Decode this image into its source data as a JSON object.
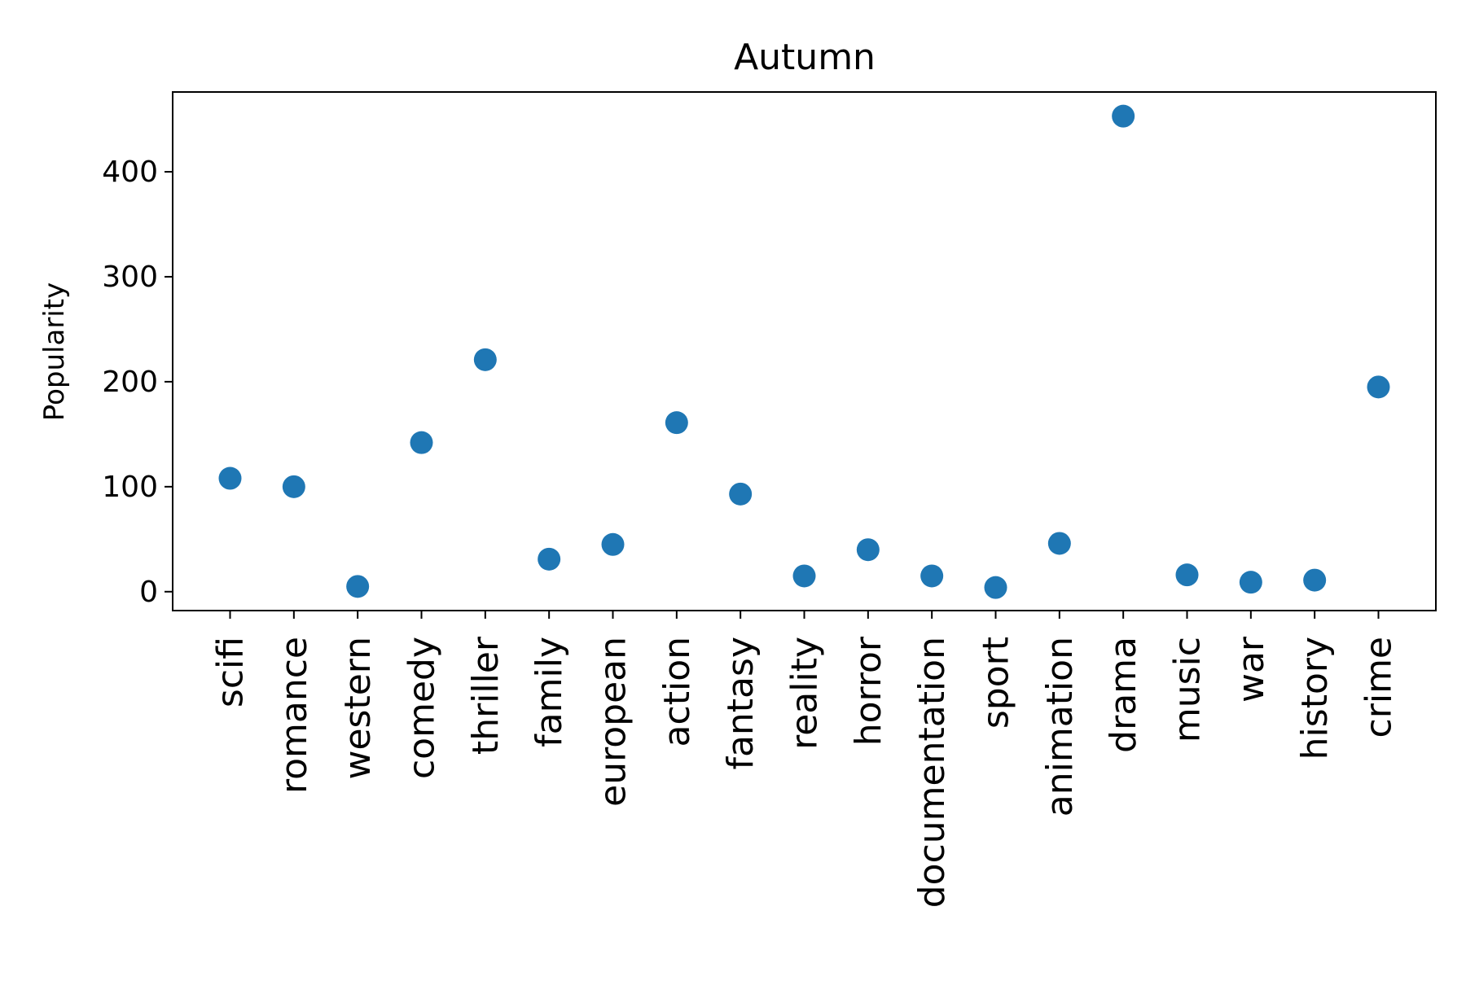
{
  "chart_data": {
    "type": "scatter",
    "title": "Autumn",
    "xlabel": "",
    "ylabel": "Popularity",
    "categories": [
      "scifi",
      "romance",
      "western",
      "comedy",
      "thriller",
      "family",
      "european",
      "action",
      "fantasy",
      "reality",
      "horror",
      "documentation",
      "sport",
      "animation",
      "drama",
      "music",
      "war",
      "history",
      "crime"
    ],
    "values": [
      108,
      100,
      5,
      142,
      221,
      31,
      45,
      161,
      93,
      15,
      40,
      15,
      4,
      46,
      453,
      16,
      9,
      11,
      195
    ],
    "ylim": [
      -18,
      476
    ],
    "yticks": [
      0,
      100,
      200,
      300,
      400
    ],
    "grid": false,
    "legend": "none",
    "colors": {
      "marker": "#1f77b4",
      "axes": "#000000",
      "background": "#ffffff"
    }
  }
}
